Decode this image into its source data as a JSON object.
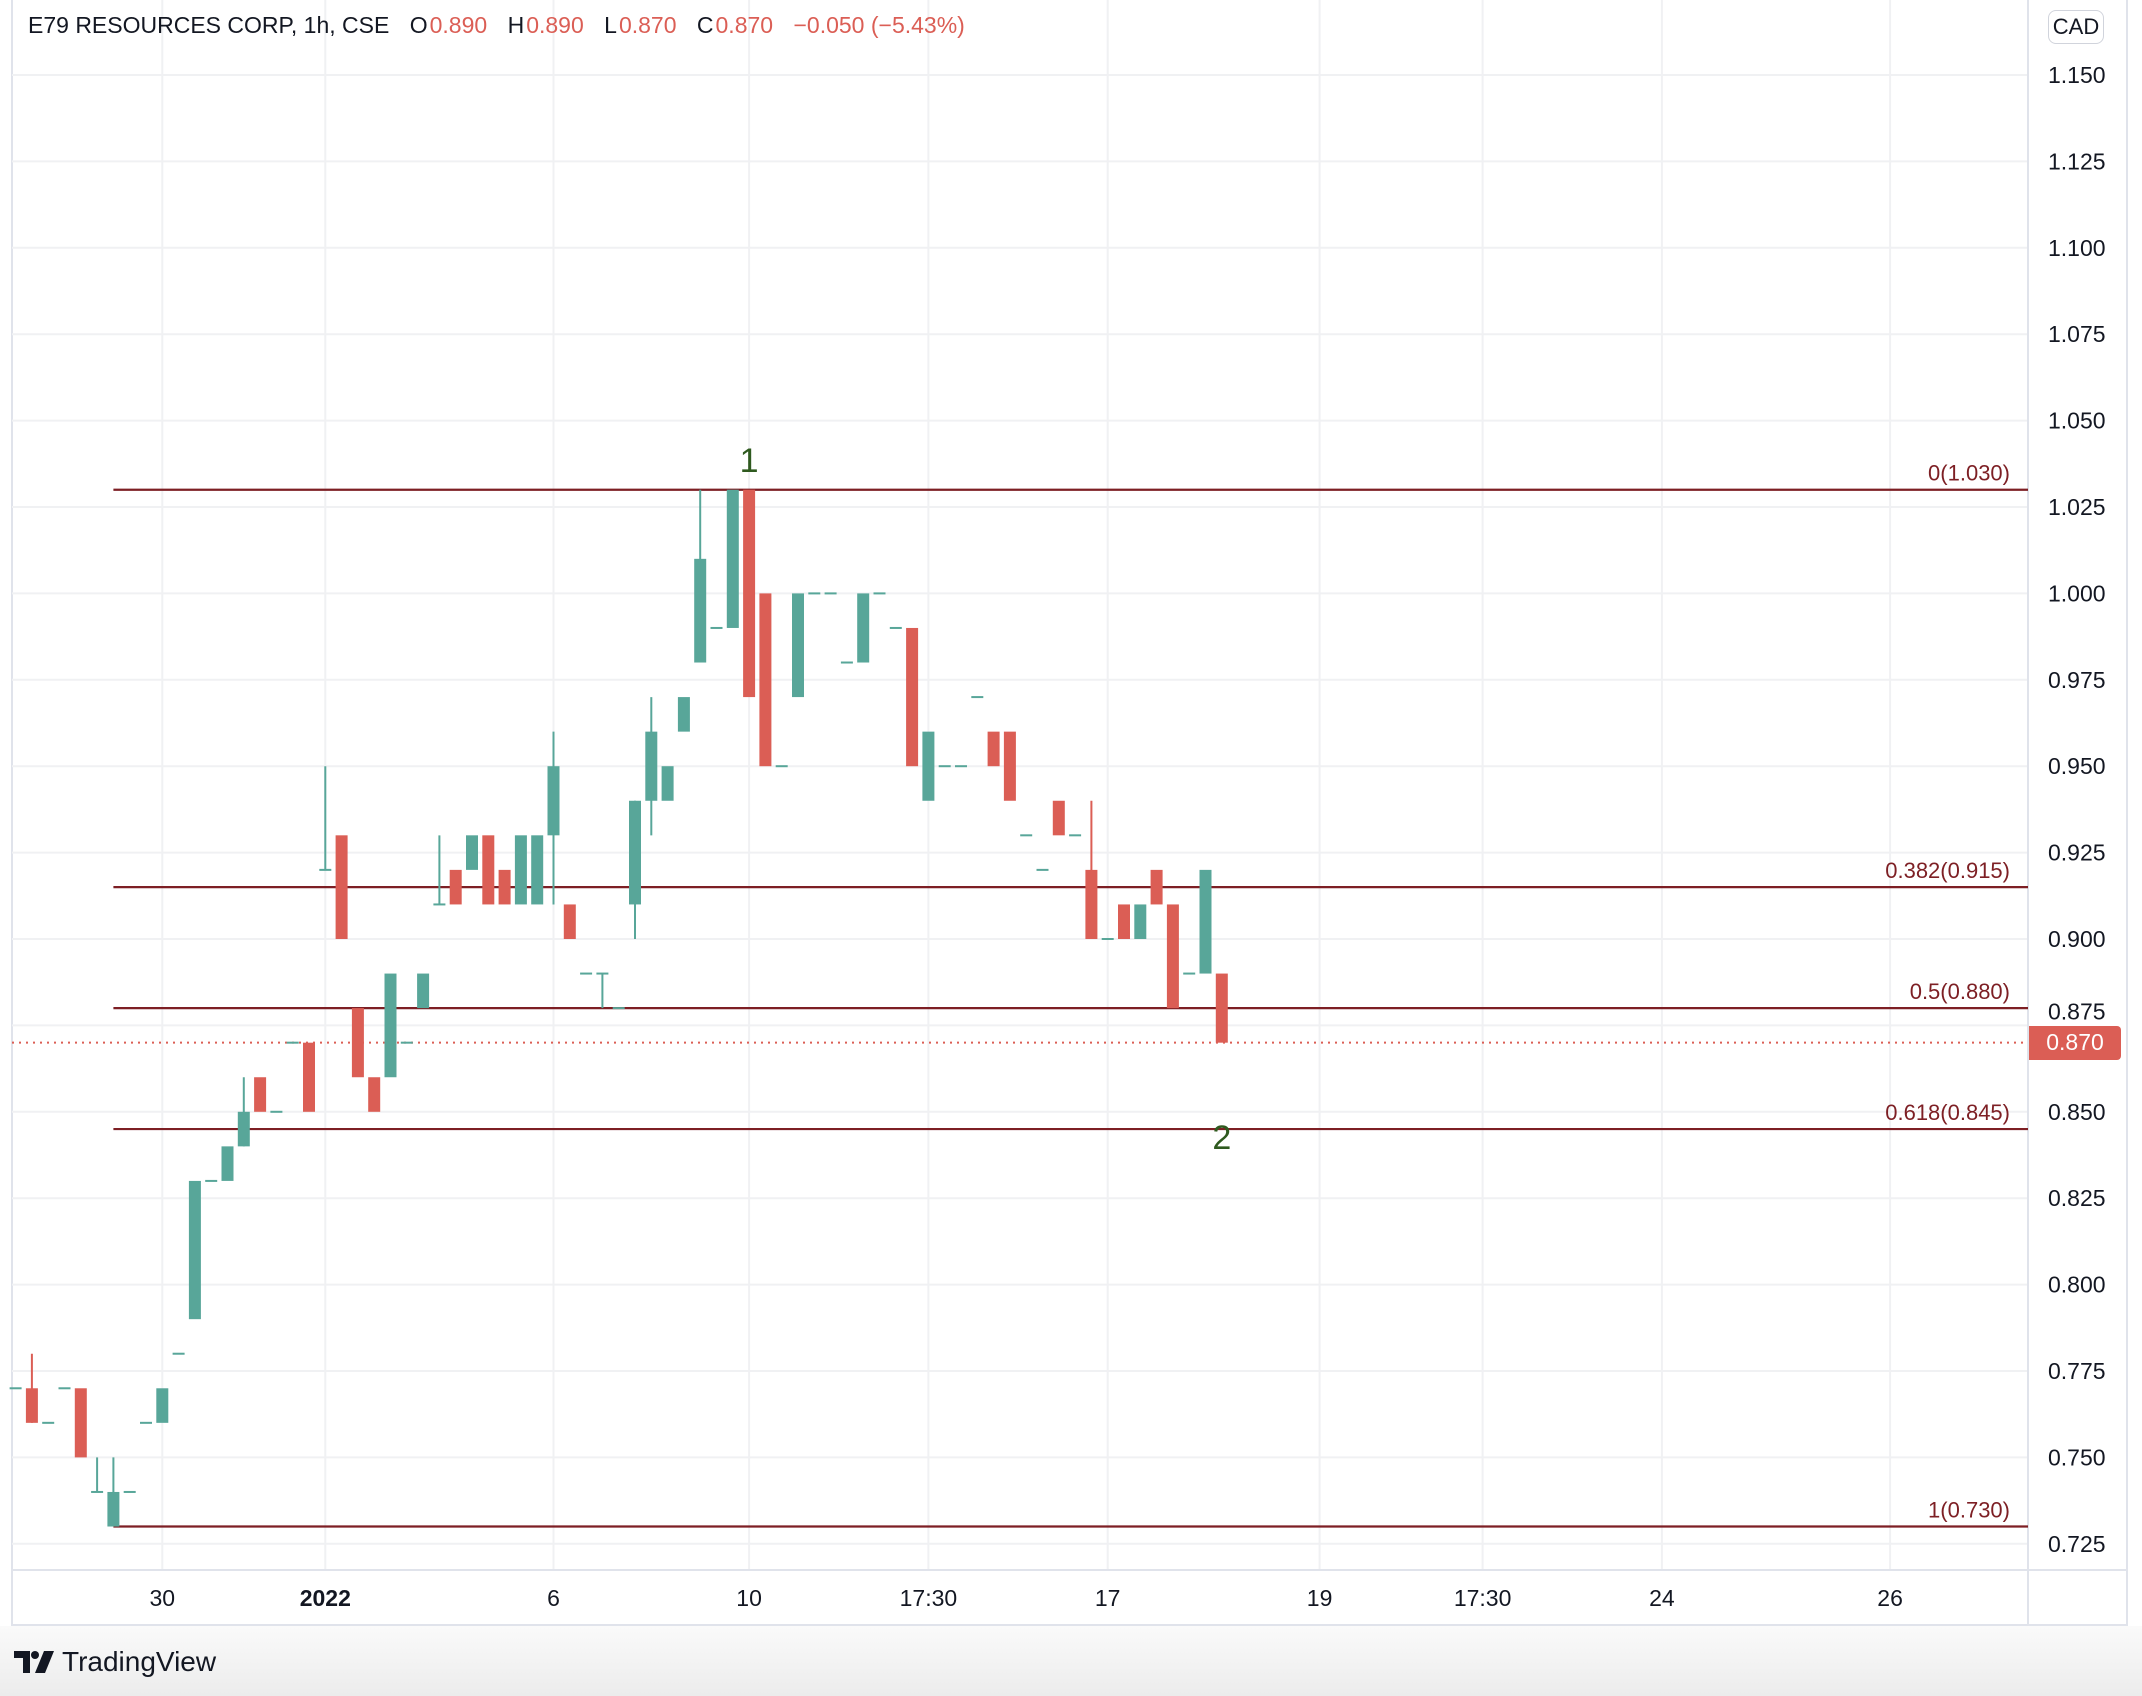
{
  "header": {
    "title": "E79 RESOURCES CORP, 1h, CSE",
    "open_label": "O",
    "open": "0.890",
    "high_label": "H",
    "high": "0.890",
    "low_label": "L",
    "low": "0.870",
    "close_label": "C",
    "close": "0.870",
    "change": "−0.050 (−5.43%)"
  },
  "currency_button": "CAD",
  "footer": {
    "brand": "TradingView"
  },
  "colors": {
    "up": "#58a699",
    "down": "#db5e55",
    "fib": "#7d1f24",
    "grid": "#f0f1f3",
    "wave": "#2f5a1f"
  },
  "chart_data": {
    "type": "candlestick",
    "title": "E79 RESOURCES CORP, 1h, CSE",
    "ylim": [
      0.715,
      1.16
    ],
    "y_ticks": [
      "1.150",
      "1.125",
      "1.100",
      "1.075",
      "1.050",
      "1.025",
      "1.000",
      "0.975",
      "0.950",
      "0.925",
      "0.900",
      "0.875",
      "0.850",
      "0.825",
      "0.800",
      "0.775",
      "0.750",
      "0.725"
    ],
    "x_ticks": [
      {
        "label": "30",
        "bar": 9,
        "bold": false
      },
      {
        "label": "2022",
        "bar": 19,
        "bold": true
      },
      {
        "label": "6",
        "bar": 33,
        "bold": false
      },
      {
        "label": "10",
        "bar": 45,
        "bold": false
      },
      {
        "label": "17:30",
        "bar": 56,
        "bold": false
      },
      {
        "label": "17",
        "bar": 67,
        "bold": false
      },
      {
        "label": "19",
        "bar": 80,
        "bold": false
      },
      {
        "label": "17:30",
        "bar": 90,
        "bold": false
      },
      {
        "label": "24",
        "bar": 101,
        "bold": false
      },
      {
        "label": "26",
        "bar": 115,
        "bold": false
      }
    ],
    "candles_ohlc": [
      [
        0.77,
        0.77,
        0.77,
        0.77
      ],
      [
        0.77,
        0.78,
        0.76,
        0.76
      ],
      [
        0.76,
        0.76,
        0.76,
        0.76
      ],
      [
        0.77,
        0.77,
        0.77,
        0.77
      ],
      [
        0.77,
        0.77,
        0.75,
        0.75
      ],
      [
        0.74,
        0.75,
        0.74,
        0.74
      ],
      [
        0.73,
        0.75,
        0.73,
        0.74
      ],
      [
        0.74,
        0.74,
        0.74,
        0.74
      ],
      [
        0.76,
        0.76,
        0.76,
        0.76
      ],
      [
        0.76,
        0.77,
        0.76,
        0.77
      ],
      [
        0.78,
        0.78,
        0.78,
        0.78
      ],
      [
        0.79,
        0.83,
        0.79,
        0.83
      ],
      [
        0.83,
        0.83,
        0.83,
        0.83
      ],
      [
        0.83,
        0.84,
        0.83,
        0.84
      ],
      [
        0.84,
        0.86,
        0.84,
        0.85
      ],
      [
        0.86,
        0.86,
        0.85,
        0.85
      ],
      [
        0.85,
        0.85,
        0.85,
        0.85
      ],
      [
        0.87,
        0.87,
        0.87,
        0.87
      ],
      [
        0.87,
        0.87,
        0.85,
        0.85
      ],
      [
        0.92,
        0.95,
        0.92,
        0.92
      ],
      [
        0.93,
        0.93,
        0.9,
        0.9
      ],
      [
        0.88,
        0.88,
        0.86,
        0.86
      ],
      [
        0.86,
        0.86,
        0.85,
        0.85
      ],
      [
        0.86,
        0.89,
        0.86,
        0.89
      ],
      [
        0.87,
        0.87,
        0.87,
        0.87
      ],
      [
        0.88,
        0.89,
        0.88,
        0.89
      ],
      [
        0.91,
        0.93,
        0.91,
        0.91
      ],
      [
        0.92,
        0.92,
        0.91,
        0.91
      ],
      [
        0.92,
        0.93,
        0.92,
        0.93
      ],
      [
        0.93,
        0.93,
        0.91,
        0.91
      ],
      [
        0.92,
        0.92,
        0.91,
        0.91
      ],
      [
        0.91,
        0.93,
        0.91,
        0.93
      ],
      [
        0.91,
        0.93,
        0.91,
        0.93
      ],
      [
        0.93,
        0.96,
        0.91,
        0.95
      ],
      [
        0.91,
        0.91,
        0.9,
        0.9
      ],
      [
        0.89,
        0.89,
        0.89,
        0.89
      ],
      [
        0.89,
        0.89,
        0.88,
        0.89
      ],
      [
        0.88,
        0.88,
        0.88,
        0.88
      ],
      [
        0.91,
        0.94,
        0.9,
        0.94
      ],
      [
        0.94,
        0.97,
        0.93,
        0.96
      ],
      [
        0.94,
        0.95,
        0.94,
        0.95
      ],
      [
        0.96,
        0.97,
        0.96,
        0.97
      ],
      [
        0.98,
        1.03,
        0.98,
        1.01
      ],
      [
        0.99,
        0.99,
        0.99,
        0.99
      ],
      [
        0.99,
        1.03,
        0.99,
        1.03
      ],
      [
        1.03,
        1.03,
        0.97,
        0.97
      ],
      [
        1.0,
        1.0,
        0.95,
        0.95
      ],
      [
        0.95,
        0.95,
        0.95,
        0.95
      ],
      [
        0.97,
        1.0,
        0.97,
        1.0
      ],
      [
        1.0,
        1.0,
        1.0,
        1.0
      ],
      [
        1.0,
        1.0,
        1.0,
        1.0
      ],
      [
        0.98,
        0.98,
        0.98,
        0.98
      ],
      [
        0.98,
        1.0,
        0.98,
        1.0
      ],
      [
        1.0,
        1.0,
        1.0,
        1.0
      ],
      [
        0.99,
        0.99,
        0.99,
        0.99
      ],
      [
        0.99,
        0.99,
        0.95,
        0.95
      ],
      [
        0.94,
        0.96,
        0.94,
        0.96
      ],
      [
        0.95,
        0.95,
        0.95,
        0.95
      ],
      [
        0.95,
        0.95,
        0.95,
        0.95
      ],
      [
        0.97,
        0.97,
        0.97,
        0.97
      ],
      [
        0.96,
        0.96,
        0.95,
        0.95
      ],
      [
        0.96,
        0.96,
        0.94,
        0.94
      ],
      [
        0.93,
        0.93,
        0.93,
        0.93
      ],
      [
        0.92,
        0.92,
        0.92,
        0.92
      ],
      [
        0.94,
        0.94,
        0.93,
        0.93
      ],
      [
        0.93,
        0.93,
        0.93,
        0.93
      ],
      [
        0.92,
        0.94,
        0.9,
        0.9
      ],
      [
        0.9,
        0.9,
        0.9,
        0.9
      ],
      [
        0.91,
        0.91,
        0.9,
        0.9
      ],
      [
        0.9,
        0.91,
        0.9,
        0.91
      ],
      [
        0.92,
        0.92,
        0.91,
        0.91
      ],
      [
        0.91,
        0.91,
        0.88,
        0.88
      ],
      [
        0.89,
        0.89,
        0.89,
        0.89
      ],
      [
        0.89,
        0.92,
        0.89,
        0.92
      ],
      [
        0.89,
        0.89,
        0.87,
        0.87
      ]
    ],
    "fib_start_bar": 6,
    "fib_levels": [
      {
        "label": "0(1.030)",
        "price": 1.03
      },
      {
        "label": "0.382(0.915)",
        "price": 0.915
      },
      {
        "label": "0.5(0.880)",
        "price": 0.88
      },
      {
        "label": "0.618(0.845)",
        "price": 0.845
      },
      {
        "label": "1(0.730)",
        "price": 0.73
      }
    ],
    "last_price": {
      "label": "0.870",
      "price": 0.87
    },
    "annotations": [
      {
        "text": "1",
        "bar": 45,
        "price": 1.038
      },
      {
        "text": "2",
        "bar": 74,
        "price": 0.842
      }
    ]
  }
}
